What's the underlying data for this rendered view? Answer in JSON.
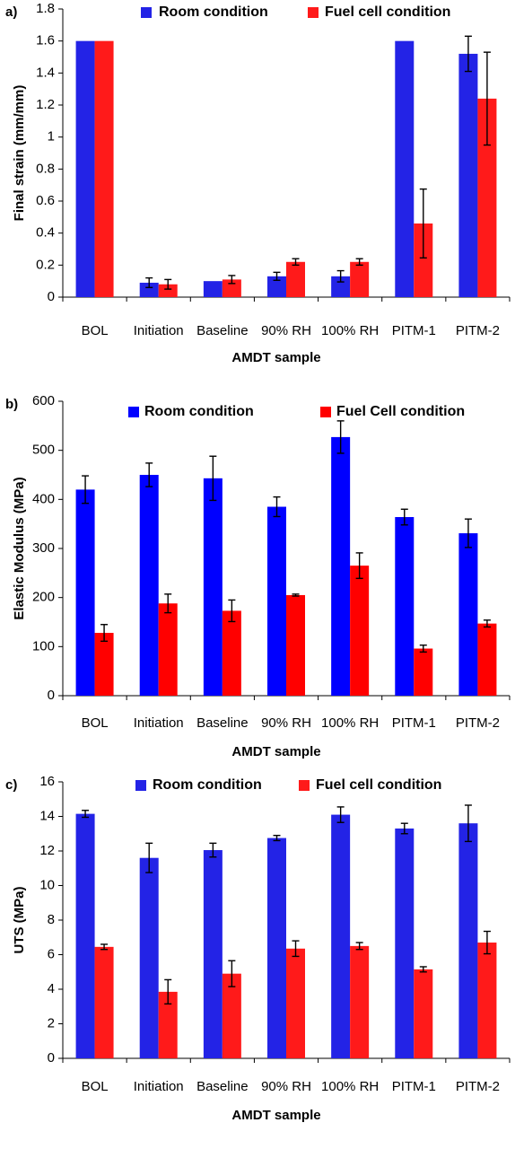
{
  "chart_data": [
    {
      "panel_label": "a)",
      "type": "bar",
      "categories": [
        "BOL",
        "Initiation",
        "Baseline",
        "90% RH",
        "100% RH",
        "PITM-1",
        "PITM-2"
      ],
      "ylabel": "Final strain (mm/mm)",
      "xlabel": "AMDT sample",
      "ylim": [
        0,
        1.8
      ],
      "yticks": [
        "0",
        "0.2",
        "0.4",
        "0.6",
        "0.8",
        "1",
        "1.2",
        "1.4",
        "1.6",
        "1.8"
      ],
      "legend_position": "top",
      "series": [
        {
          "name": "Room condition",
          "color": "#2323e6",
          "values": [
            1.6,
            0.09,
            0.1,
            0.13,
            0.13,
            1.6,
            1.52
          ],
          "errors": [
            0,
            0.03,
            0,
            0.025,
            0.035,
            0,
            0.11
          ]
        },
        {
          "name": "Fuel cell condition",
          "color": "#ff1a1a",
          "values": [
            1.6,
            0.08,
            0.11,
            0.22,
            0.22,
            0.46,
            1.24
          ],
          "errors": [
            0,
            0.03,
            0.025,
            0.02,
            0.02,
            0.215,
            0.29
          ]
        }
      ]
    },
    {
      "panel_label": "b)",
      "type": "bar",
      "categories": [
        "BOL",
        "Initiation",
        "Baseline",
        "90% RH",
        "100% RH",
        "PITM-1",
        "PITM-2"
      ],
      "ylabel": "Elastic Modulus (MPa)",
      "xlabel": "AMDT sample",
      "ylim": [
        0,
        600
      ],
      "yticks": [
        "0",
        "100",
        "200",
        "300",
        "400",
        "500",
        "600"
      ],
      "legend_position": "top",
      "series": [
        {
          "name": "Room condition",
          "color": "#0000ff",
          "values": [
            420,
            450,
            443,
            385,
            527,
            364,
            331
          ],
          "errors": [
            28,
            24,
            45,
            20,
            33,
            16,
            29
          ]
        },
        {
          "name": "Fuel Cell condition",
          "color": "#ff0000",
          "values": [
            128,
            188,
            173,
            205,
            265,
            96,
            147
          ],
          "errors": [
            17,
            19,
            22,
            2,
            26,
            7,
            7
          ]
        }
      ]
    },
    {
      "panel_label": "c)",
      "type": "bar",
      "categories": [
        "BOL",
        "Initiation",
        "Baseline",
        "90% RH",
        "100% RH",
        "PITM-1",
        "PITM-2"
      ],
      "ylabel": "UTS (MPa)",
      "xlabel": "AMDT sample",
      "ylim": [
        0,
        16
      ],
      "yticks": [
        "0",
        "2",
        "4",
        "6",
        "8",
        "10",
        "12",
        "14",
        "16"
      ],
      "legend_position": "top",
      "series": [
        {
          "name": "Room condition",
          "color": "#2323e6",
          "values": [
            14.15,
            11.6,
            12.05,
            12.75,
            14.1,
            13.3,
            13.6
          ],
          "errors": [
            0.2,
            0.85,
            0.4,
            0.15,
            0.45,
            0.3,
            1.05
          ]
        },
        {
          "name": "Fuel cell condition",
          "color": "#ff1a1a",
          "values": [
            6.45,
            3.85,
            4.9,
            6.35,
            6.5,
            5.15,
            6.7
          ],
          "errors": [
            0.15,
            0.7,
            0.75,
            0.45,
            0.2,
            0.15,
            0.65
          ]
        }
      ]
    }
  ]
}
